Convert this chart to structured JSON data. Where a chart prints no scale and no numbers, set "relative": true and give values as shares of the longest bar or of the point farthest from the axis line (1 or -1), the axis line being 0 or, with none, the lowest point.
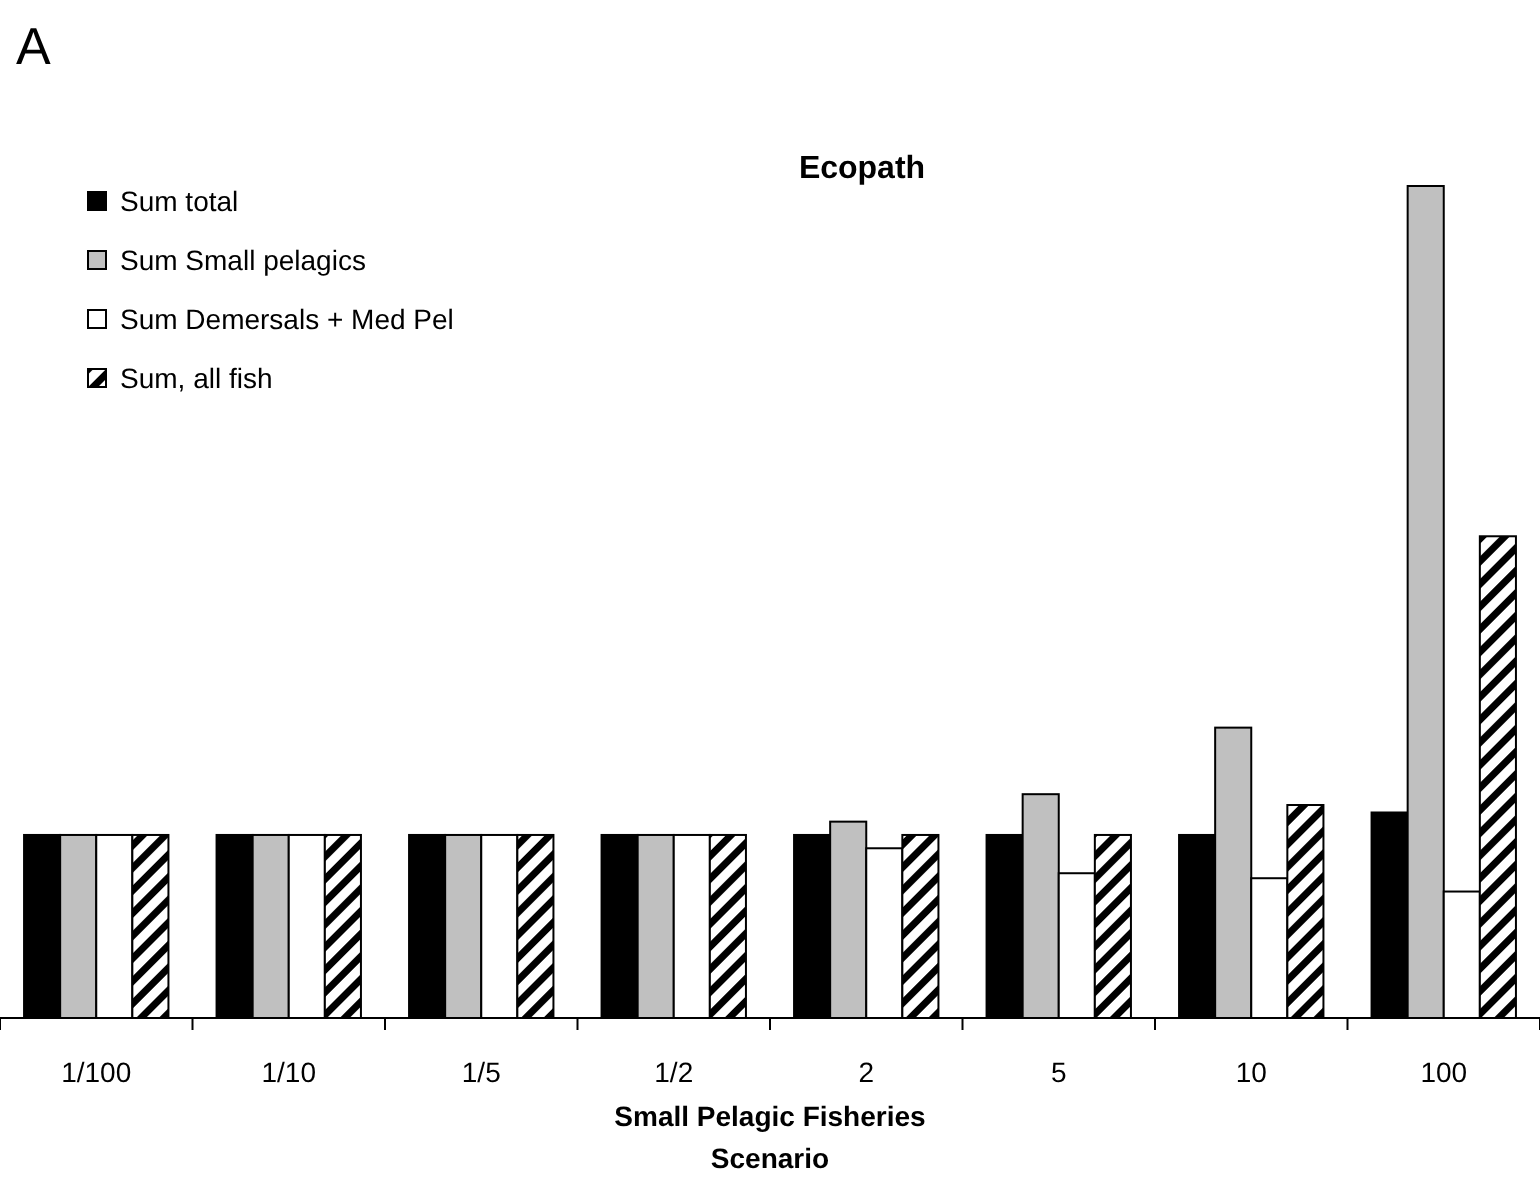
{
  "chart_data": {
    "type": "bar",
    "title": "Ecopath",
    "xlabel": "Small Pelagic Fisheries\nScenario",
    "annotations": [
      "A"
    ],
    "relative": true,
    "legend": "top left",
    "categories": [
      "1/100",
      "1/10",
      "1/5",
      "1/2",
      "2",
      "5",
      "10",
      "100"
    ],
    "series": [
      {
        "name": "Sum total",
        "color": "#000000",
        "values": [
          0.22,
          0.22,
          0.22,
          0.22,
          0.22,
          0.22,
          0.22,
          0.247
        ]
      },
      {
        "name": "Sum Small pelagics",
        "color": "#c0c0c0",
        "values": [
          0.22,
          0.22,
          0.22,
          0.22,
          0.236,
          0.269,
          0.349,
          1.0
        ]
      },
      {
        "name": "Sum Demersals + Med Pel",
        "color": "#ffffff",
        "values": [
          0.22,
          0.22,
          0.22,
          0.22,
          0.204,
          0.174,
          0.168,
          0.152
        ]
      },
      {
        "name": "Sum, all fish",
        "color": "#000000",
        "values": [
          0.22,
          0.22,
          0.22,
          0.22,
          0.22,
          0.22,
          0.256,
          0.579
        ]
      }
    ]
  }
}
